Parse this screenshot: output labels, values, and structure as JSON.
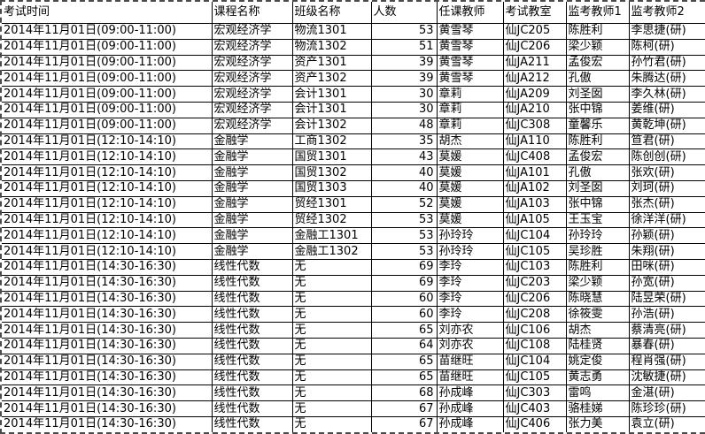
{
  "table": {
    "headers": [
      "考试时间",
      "课程名称",
      "班级名称",
      "人数",
      "任课教师",
      "考试教室",
      "监考教师1",
      "监考教师2"
    ],
    "rows": [
      [
        "2014年11月01日(09:00-11:00)",
        "宏观经济学",
        "物流1301",
        "53",
        "黄雪琴",
        "仙JC205",
        "陈胜利",
        "李思捷(研)"
      ],
      [
        "2014年11月01日(09:00-11:00)",
        "宏观经济学",
        "物流1302",
        "51",
        "黄雪琴",
        "仙JC206",
        "梁少颖",
        "陈柯(研)"
      ],
      [
        "2014年11月01日(09:00-11:00)",
        "宏观经济学",
        "资产1301",
        "39",
        "黄雪琴",
        "仙JA211",
        "孟俊宏",
        "孙竹君(研)"
      ],
      [
        "2014年11月01日(09:00-11:00)",
        "宏观经济学",
        "资产1302",
        "39",
        "黄雪琴",
        "仙JA212",
        "孔傲",
        "朱腾达(研)"
      ],
      [
        "2014年11月01日(09:00-11:00)",
        "宏观经济学",
        "会计1301",
        "30",
        "章莉",
        "仙JA209",
        "刘圣囡",
        "李久林(研)"
      ],
      [
        "2014年11月01日(09:00-11:00)",
        "宏观经济学",
        "会计1301",
        "30",
        "章莉",
        "仙JA210",
        "张中锦",
        "姜维(研)"
      ],
      [
        "2014年11月01日(09:00-11:00)",
        "宏观经济学",
        "会计1302",
        "48",
        "章莉",
        "仙JC308",
        "童馨乐",
        "黄乾坤(研)"
      ],
      [
        "2014年11月01日(12:10-14:10)",
        "金融学",
        "工商1302",
        "35",
        "胡杰",
        "仙JA110",
        "陈胜利",
        "笪君(研)"
      ],
      [
        "2014年11月01日(12:10-14:10)",
        "金融学",
        "国贸1301",
        "43",
        "莫媛",
        "仙JC408",
        "孟俊宏",
        "陈创创(研)"
      ],
      [
        "2014年11月01日(12:10-14:10)",
        "金融学",
        "国贸1302",
        "40",
        "莫媛",
        "仙JA101",
        "孔傲",
        "张欢(研)"
      ],
      [
        "2014年11月01日(12:10-14:10)",
        "金融学",
        "国贸1303",
        "40",
        "莫媛",
        "仙JA102",
        "刘圣囡",
        "刘珂(研)"
      ],
      [
        "2014年11月01日(12:10-14:10)",
        "金融学",
        "贸经1301",
        "52",
        "莫媛",
        "仙JA103",
        "张中锦",
        "张杰(研)"
      ],
      [
        "2014年11月01日(12:10-14:10)",
        "金融学",
        "贸经1302",
        "53",
        "莫媛",
        "仙JA105",
        "王玉宝",
        "徐洋洋(研)"
      ],
      [
        "2014年11月01日(12:10-14:10)",
        "金融学",
        "金融工1301",
        "53",
        "孙玲玲",
        "仙JC104",
        "孙玲玲",
        "孙颖(研)"
      ],
      [
        "2014年11月01日(12:10-14:10)",
        "金融学",
        "金融工1302",
        "53",
        "孙玲玲",
        "仙JC105",
        "吴珍胜",
        "朱翔(研)"
      ],
      [
        "2014年11月01日(14:30-16:30)",
        "线性代数",
        "无",
        "69",
        "李玲",
        "仙JC103",
        "陈胜利",
        "田咪(研)"
      ],
      [
        "2014年11月01日(14:30-16:30)",
        "线性代数",
        "无",
        "69",
        "李玲",
        "仙JC203",
        "梁少颖",
        "孙宽(研)"
      ],
      [
        "2014年11月01日(14:30-16:30)",
        "线性代数",
        "无",
        "60",
        "李玲",
        "仙JC206",
        "陈晓慧",
        "陆昱荣(研)"
      ],
      [
        "2014年11月01日(14:30-16:30)",
        "线性代数",
        "无",
        "60",
        "李玲",
        "仙JC208",
        "徐筱雯",
        "孙浩(研)"
      ],
      [
        "2014年11月01日(14:30-16:30)",
        "线性代数",
        "无",
        "65",
        "刘亦农",
        "仙JC106",
        "胡杰",
        "蔡清亮(研)"
      ],
      [
        "2014年11月01日(14:30-16:30)",
        "线性代数",
        "无",
        "64",
        "刘亦农",
        "仙JC108",
        "陆桂贤",
        "暴春(研)"
      ],
      [
        "2014年11月01日(14:30-16:30)",
        "线性代数",
        "无",
        "65",
        "苗继旺",
        "仙JC104",
        "姚定俊",
        "程肖强(研)"
      ],
      [
        "2014年11月01日(14:30-16:30)",
        "线性代数",
        "无",
        "65",
        "苗继旺",
        "仙JC105",
        "黄志勇",
        "沈敏捷(研)"
      ],
      [
        "2014年11月01日(14:30-16:30)",
        "线性代数",
        "无",
        "68",
        "孙成峰",
        "仙JC303",
        "雷鸣",
        "金湛(研)"
      ],
      [
        "2014年11月01日(14:30-16:30)",
        "线性代数",
        "无",
        "67",
        "孙成峰",
        "仙JC403",
        "骆桂娣",
        "陈珍珍(研)"
      ],
      [
        "2014年11月01日(14:30-16:30)",
        "线性代数",
        "无",
        "67",
        "孙成峰",
        "仙JC406",
        "张力美",
        "袁立(研)"
      ]
    ]
  },
  "colors": {
    "background": "#ffffff",
    "text": "#000000",
    "gridline": "#000000",
    "page_break_dash": "#4a4a4a"
  }
}
